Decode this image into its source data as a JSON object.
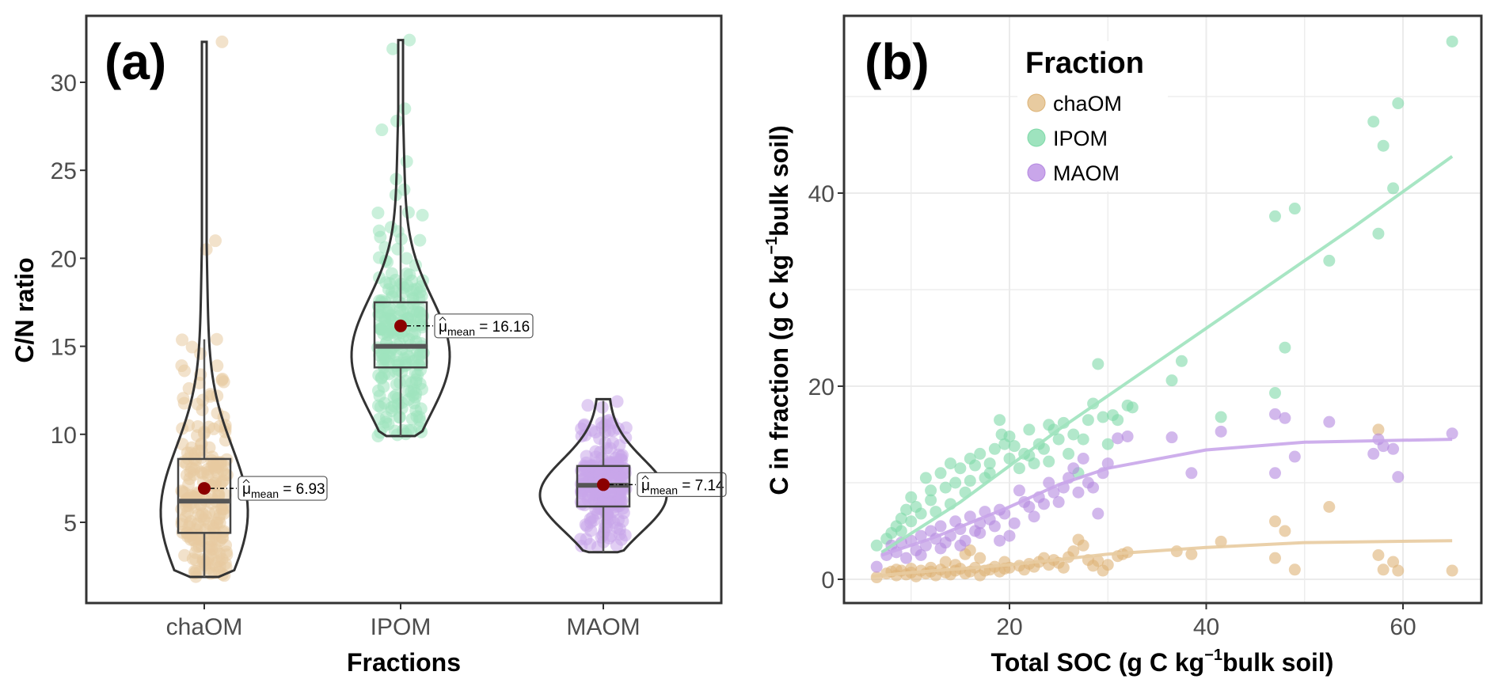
{
  "chart_data": [
    {
      "panel": "(a)",
      "type": "violin-box-jitter",
      "xlabel": "Fractions",
      "ylabel": "C/N ratio",
      "ylim": [
        0.5,
        33.5
      ],
      "yticks": [
        5,
        10,
        15,
        20,
        25,
        30
      ],
      "categories": [
        "chaOM",
        "IPOM",
        "MAOM"
      ],
      "series": [
        {
          "name": "chaOM",
          "color": "#E8CBA0",
          "min": 1.9,
          "q1": 4.4,
          "median": 6.2,
          "q3": 8.6,
          "whisker_high": 15.4,
          "max": 32.3,
          "mean": 6.93,
          "mean_label": "6.93",
          "outliers": [
            32.3,
            21.0,
            20.5,
            15.4
          ]
        },
        {
          "name": "IPOM",
          "color": "#9EE3BE",
          "min": 9.9,
          "q1": 13.8,
          "median": 15.0,
          "q3": 17.5,
          "whisker_high": 23.0,
          "max": 32.4,
          "mean": 16.16,
          "mean_label": "16.16",
          "outliers": [
            32.4,
            31.9,
            28.5,
            27.8,
            27.3,
            25.5,
            24.5,
            23.9,
            23.6
          ]
        },
        {
          "name": "MAOM",
          "color": "#C9A6EA",
          "min": 3.3,
          "q1": 5.9,
          "median": 7.1,
          "q3": 8.2,
          "whisker_high": 11.9,
          "max": 12.0,
          "mean": 7.14,
          "mean_label": "7.14",
          "outliers": []
        }
      ],
      "mean_point_color": "#8B0000",
      "mean_annotation_prefix": "μ",
      "mean_annotation_sub": "mean"
    },
    {
      "panel": "(b)",
      "type": "scatter",
      "xlabel": "Total SOC (g C kg⁻¹bulk soil)",
      "xlabel_parts": [
        "Total SOC (g C kg",
        "−1",
        "bulk soil)"
      ],
      "ylabel": "C in fraction (g C kg⁻¹bulk soil)",
      "ylabel_parts": [
        "C in fraction (g C kg",
        "−1",
        "bulk soil)"
      ],
      "xlim": [
        4,
        68
      ],
      "ylim": [
        -2.5,
        58
      ],
      "xticks": [
        20,
        40,
        60
      ],
      "yticks": [
        0,
        20,
        40
      ],
      "grid": true,
      "legend": {
        "title": "Fraction",
        "position": "top-left-inside",
        "entries": [
          "chaOM",
          "IPOM",
          "MAOM"
        ]
      },
      "series": [
        {
          "name": "chaOM",
          "color": "#DDB376",
          "legend_color": "#E8CBA0",
          "trend": [
            [
              6,
              0.3
            ],
            [
              10,
              0.7
            ],
            [
              20,
              1.5
            ],
            [
              30,
              2.6
            ],
            [
              40,
              3.3
            ],
            [
              50,
              3.8
            ],
            [
              65,
              4.0
            ]
          ],
          "points": [
            [
              6.5,
              0.2
            ],
            [
              7.5,
              0.6
            ],
            [
              8,
              0.8
            ],
            [
              8.5,
              0.4
            ],
            [
              9,
              0.9
            ],
            [
              9.5,
              0.5
            ],
            [
              10,
              0.7
            ],
            [
              10.5,
              0.3
            ],
            [
              11,
              0.9
            ],
            [
              11.5,
              0.6
            ],
            [
              12,
              0.8
            ],
            [
              12.5,
              0.4
            ],
            [
              13,
              1.0
            ],
            [
              13.5,
              0.7
            ],
            [
              14,
              0.5
            ],
            [
              14.5,
              0.9
            ],
            [
              15,
              1.1
            ],
            [
              15.5,
              0.6
            ],
            [
              16,
              0.8
            ],
            [
              16.5,
              1.2
            ],
            [
              17,
              0.4
            ],
            [
              17.5,
              0.9
            ],
            [
              18,
              1.0
            ],
            [
              18.5,
              1.3
            ],
            [
              19,
              0.8
            ],
            [
              19.5,
              1.1
            ],
            [
              20,
              1.2
            ],
            [
              21,
              1.4
            ],
            [
              21.5,
              1.0
            ],
            [
              22,
              1.6
            ],
            [
              22.5,
              1.3
            ],
            [
              23,
              1.8
            ],
            [
              23.5,
              2.2
            ],
            [
              24,
              1.5
            ],
            [
              24.5,
              2.0
            ],
            [
              25,
              1.7
            ],
            [
              25.5,
              1.2
            ],
            [
              26,
              2.3
            ],
            [
              26.5,
              2.9
            ],
            [
              27,
              4.1
            ],
            [
              27.5,
              3.5
            ],
            [
              28,
              2.0
            ],
            [
              28.5,
              1.4
            ],
            [
              29,
              1.9
            ],
            [
              29.5,
              0.9
            ],
            [
              30,
              1.5
            ],
            [
              31,
              2.4
            ],
            [
              31.5,
              2.6
            ],
            [
              32,
              2.8
            ],
            [
              37,
              2.9
            ],
            [
              38.5,
              2.6
            ],
            [
              41.5,
              3.9
            ],
            [
              47,
              6.0
            ],
            [
              47,
              2.2
            ],
            [
              48,
              5.0
            ],
            [
              49,
              1.0
            ],
            [
              52.5,
              7.5
            ],
            [
              57.5,
              15.5
            ],
            [
              57.5,
              2.5
            ],
            [
              58,
              1.0
            ],
            [
              59,
              1.8
            ],
            [
              59.5,
              0.9
            ],
            [
              65,
              0.9
            ],
            [
              13.5,
              1.8
            ],
            [
              15.5,
              2.6
            ],
            [
              14.5,
              1.5
            ],
            [
              16,
              3.0
            ],
            [
              17,
              2.2
            ],
            [
              19.5,
              1.8
            ],
            [
              12,
              1.2
            ],
            [
              10,
              1.1
            ],
            [
              8.5,
              1.0
            ]
          ]
        },
        {
          "name": "IPOM",
          "color": "#7FD9A8",
          "legend_color": "#9EE3BE",
          "trend": [
            [
              7,
              2.8
            ],
            [
              15,
              8.0
            ],
            [
              25,
              15.5
            ],
            [
              35,
              22.5
            ],
            [
              45,
              29.5
            ],
            [
              55,
              36.5
            ],
            [
              65,
              43.8
            ]
          ],
          "points": [
            [
              6.5,
              3.5
            ],
            [
              8,
              4.8
            ],
            [
              8.5,
              5.5
            ],
            [
              9,
              6.3
            ],
            [
              9.5,
              7.2
            ],
            [
              10,
              6.0
            ],
            [
              10.5,
              7.5
            ],
            [
              11,
              6.8
            ],
            [
              11.5,
              10.5
            ],
            [
              12,
              8.2
            ],
            [
              12.5,
              7.0
            ],
            [
              13,
              11.0
            ],
            [
              13.5,
              9.5
            ],
            [
              14,
              12.0
            ],
            [
              14.5,
              10.0
            ],
            [
              15,
              11.5
            ],
            [
              15.5,
              9.0
            ],
            [
              16,
              12.5
            ],
            [
              16.5,
              11.8
            ],
            [
              17,
              13.0
            ],
            [
              17.5,
              10.5
            ],
            [
              18,
              12.0
            ],
            [
              18.5,
              13.5
            ],
            [
              19,
              16.5
            ],
            [
              19.2,
              15.0
            ],
            [
              19.5,
              14.0
            ],
            [
              20,
              12.5
            ],
            [
              20.5,
              13.8
            ],
            [
              21,
              11.5
            ],
            [
              21.5,
              13.0
            ],
            [
              22,
              15.5
            ],
            [
              22.5,
              12.0
            ],
            [
              23,
              14.0
            ],
            [
              23.5,
              13.5
            ],
            [
              24,
              16.0
            ],
            [
              24.5,
              15.5
            ],
            [
              25,
              14.5
            ],
            [
              25.5,
              16.2
            ],
            [
              26,
              13.0
            ],
            [
              26.5,
              15.0
            ],
            [
              27,
              11.0
            ],
            [
              27.5,
              14.5
            ],
            [
              28,
              16.5
            ],
            [
              28.5,
              18.2
            ],
            [
              29,
              22.3
            ],
            [
              29.5,
              16.8
            ],
            [
              30,
              14.0
            ],
            [
              30.5,
              17.0
            ],
            [
              31,
              16.5
            ],
            [
              32,
              18.0
            ],
            [
              32.5,
              17.8
            ],
            [
              36.5,
              20.6
            ],
            [
              37.5,
              22.6
            ],
            [
              41.5,
              16.8
            ],
            [
              47,
              19.3
            ],
            [
              47,
              37.6
            ],
            [
              48,
              24.0
            ],
            [
              49,
              38.4
            ],
            [
              52.5,
              33.0
            ],
            [
              57,
              47.4
            ],
            [
              57.5,
              35.8
            ],
            [
              58,
              44.9
            ],
            [
              59,
              40.5
            ],
            [
              59.5,
              49.3
            ],
            [
              65,
              55.7
            ],
            [
              10,
              8.5
            ],
            [
              12,
              9.2
            ],
            [
              14,
              7.8
            ],
            [
              16,
              10.2
            ],
            [
              18,
              11.0
            ],
            [
              20,
              14.8
            ],
            [
              22,
              12.8
            ],
            [
              24,
              12.2
            ],
            [
              7.5,
              4.2
            ],
            [
              9,
              5.0
            ]
          ]
        },
        {
          "name": "MAOM",
          "color": "#B488E0",
          "legend_color": "#C9A6EA",
          "trend": [
            [
              7,
              2.5
            ],
            [
              12,
              4.2
            ],
            [
              20,
              7.5
            ],
            [
              25,
              9.8
            ],
            [
              30,
              11.5
            ],
            [
              40,
              13.4
            ],
            [
              50,
              14.2
            ],
            [
              65,
              14.5
            ]
          ],
          "points": [
            [
              6.5,
              1.3
            ],
            [
              7.5,
              2.5
            ],
            [
              8,
              3.5
            ],
            [
              8.5,
              2.8
            ],
            [
              9,
              3.8
            ],
            [
              9.5,
              2.2
            ],
            [
              10,
              4.0
            ],
            [
              10.5,
              3.0
            ],
            [
              11,
              4.5
            ],
            [
              11.5,
              3.5
            ],
            [
              12,
              5.0
            ],
            [
              12.5,
              4.2
            ],
            [
              13,
              5.5
            ],
            [
              13.5,
              3.8
            ],
            [
              14,
              4.5
            ],
            [
              14.5,
              6.0
            ],
            [
              15,
              5.2
            ],
            [
              15.5,
              4.0
            ],
            [
              16,
              6.5
            ],
            [
              16.5,
              5.0
            ],
            [
              17,
              5.8
            ],
            [
              17.5,
              7.0
            ],
            [
              18,
              6.2
            ],
            [
              18.5,
              5.5
            ],
            [
              19,
              7.2
            ],
            [
              19.5,
              6.8
            ],
            [
              20,
              4.5
            ],
            [
              20.5,
              5.8
            ],
            [
              21,
              9.2
            ],
            [
              21.5,
              8.0
            ],
            [
              22,
              7.5
            ],
            [
              22.5,
              6.5
            ],
            [
              23,
              8.5
            ],
            [
              23.5,
              7.8
            ],
            [
              24,
              10.0
            ],
            [
              24.5,
              9.0
            ],
            [
              25,
              8.0
            ],
            [
              25.5,
              9.5
            ],
            [
              26,
              10.5
            ],
            [
              26.5,
              11.5
            ],
            [
              27,
              9.0
            ],
            [
              27.5,
              12.5
            ],
            [
              28,
              10.0
            ],
            [
              28.5,
              9.5
            ],
            [
              29,
              6.8
            ],
            [
              29.5,
              11.0
            ],
            [
              30,
              12.0
            ],
            [
              31,
              14.6
            ],
            [
              32,
              14.8
            ],
            [
              36.5,
              14.7
            ],
            [
              38.5,
              11.0
            ],
            [
              41.5,
              15.3
            ],
            [
              47,
              17.1
            ],
            [
              47,
              11.0
            ],
            [
              48,
              16.7
            ],
            [
              49,
              12.7
            ],
            [
              52.5,
              16.3
            ],
            [
              57,
              13.0
            ],
            [
              57.5,
              14.5
            ],
            [
              58,
              13.8
            ],
            [
              59,
              13.5
            ],
            [
              59.5,
              10.6
            ],
            [
              65,
              15.1
            ],
            [
              11,
              2.5
            ],
            [
              13,
              3.2
            ],
            [
              15,
              3.5
            ],
            [
              17,
              4.8
            ],
            [
              19,
              4.0
            ]
          ]
        }
      ]
    }
  ]
}
